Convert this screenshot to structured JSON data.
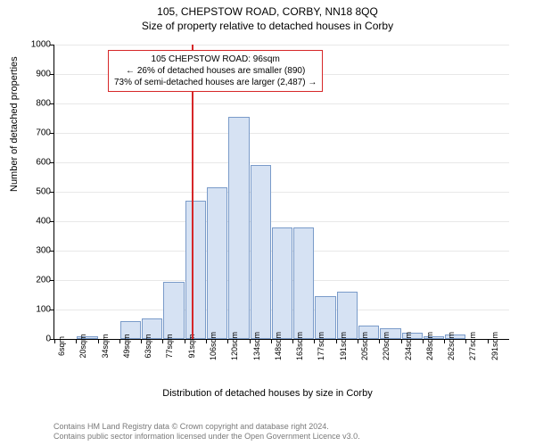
{
  "title": "105, CHEPSTOW ROAD, CORBY, NN18 8QQ",
  "subtitle": "Size of property relative to detached houses in Corby",
  "ylabel": "Number of detached properties",
  "xlabel": "Distribution of detached houses by size in Corby",
  "annotation": {
    "line1": "105 CHEPSTOW ROAD: 96sqm",
    "line2": "← 26% of detached houses are smaller (890)",
    "line3": "73% of semi-detached houses are larger (2,487) →"
  },
  "footer": {
    "line1": "Contains HM Land Registry data © Crown copyright and database right 2024.",
    "line2": "Contains public sector information licensed under the Open Government Licence v3.0."
  },
  "chart": {
    "type": "histogram",
    "ylim": [
      0,
      1000
    ],
    "ytick_step": 100,
    "yticks": [
      0,
      100,
      200,
      300,
      400,
      500,
      600,
      700,
      800,
      900,
      1000
    ],
    "xticks": [
      "6sqm",
      "20sqm",
      "34sqm",
      "49sqm",
      "63sqm",
      "77sqm",
      "91sqm",
      "106sqm",
      "120sqm",
      "134sqm",
      "148sqm",
      "163sqm",
      "177sqm",
      "191sqm",
      "205sqm",
      "220sqm",
      "234sqm",
      "248sqm",
      "262sqm",
      "277sqm",
      "291sqm"
    ],
    "bars": [
      0,
      10,
      0,
      60,
      70,
      195,
      470,
      515,
      755,
      590,
      380,
      380,
      145,
      160,
      45,
      35,
      20,
      10,
      15,
      0,
      0
    ],
    "bar_fill": "#d6e2f3",
    "bar_border": "#7a9bc9",
    "grid_color": "#e8e8e8",
    "marker_color": "#d62728",
    "marker_x_index": 6.35,
    "background": "#ffffff",
    "title_fontsize": 12,
    "label_fontsize": 11,
    "tick_fontsize": 10
  }
}
